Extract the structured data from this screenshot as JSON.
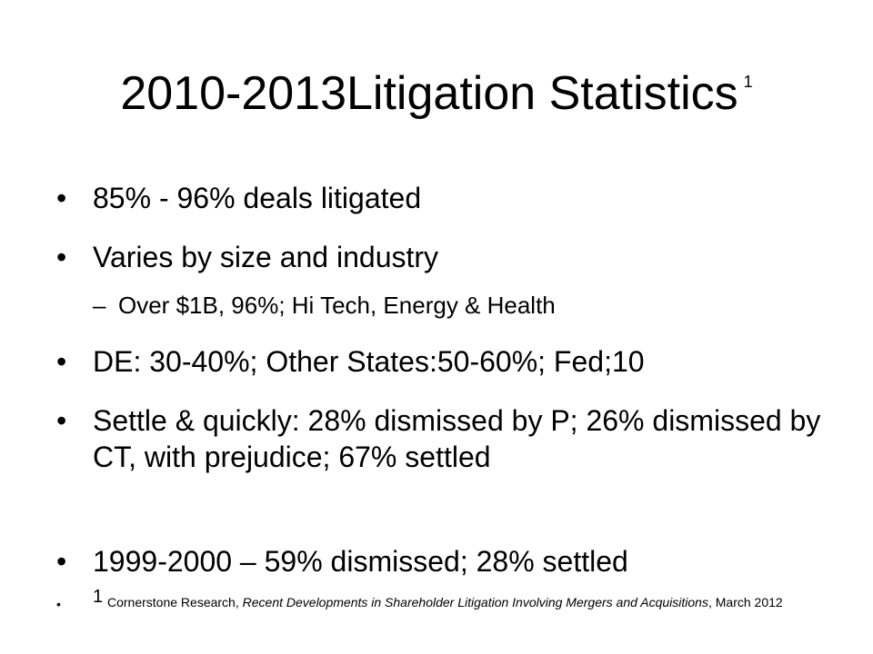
{
  "title": {
    "text": "2010-2013Litigation Statistics",
    "superscript": "1"
  },
  "bullets": [
    {
      "text": "85% - 96% deals litigated"
    },
    {
      "text": "Varies by size and industry"
    },
    {
      "text": "Over $1B, 96%; Hi Tech, Energy & Health"
    },
    {
      "text": "DE: 30-40%; Other States:50-60%; Fed;10"
    },
    {
      "text": "Settle & quickly: 28% dismissed by P; 26% dismissed by CT, with prejudice; 67% settled"
    },
    {
      "text": "1999-2000 – 59% dismissed; 28% settled"
    }
  ],
  "footnote": {
    "marker": "1",
    "prefix": "Cornerstone Research, ",
    "italic": "Recent Developments in Shareholder Litigation Involving Mergers and Acquisitions",
    "suffix": ", March 2012"
  },
  "symbols": {
    "bullet": "•",
    "dash": "–"
  }
}
